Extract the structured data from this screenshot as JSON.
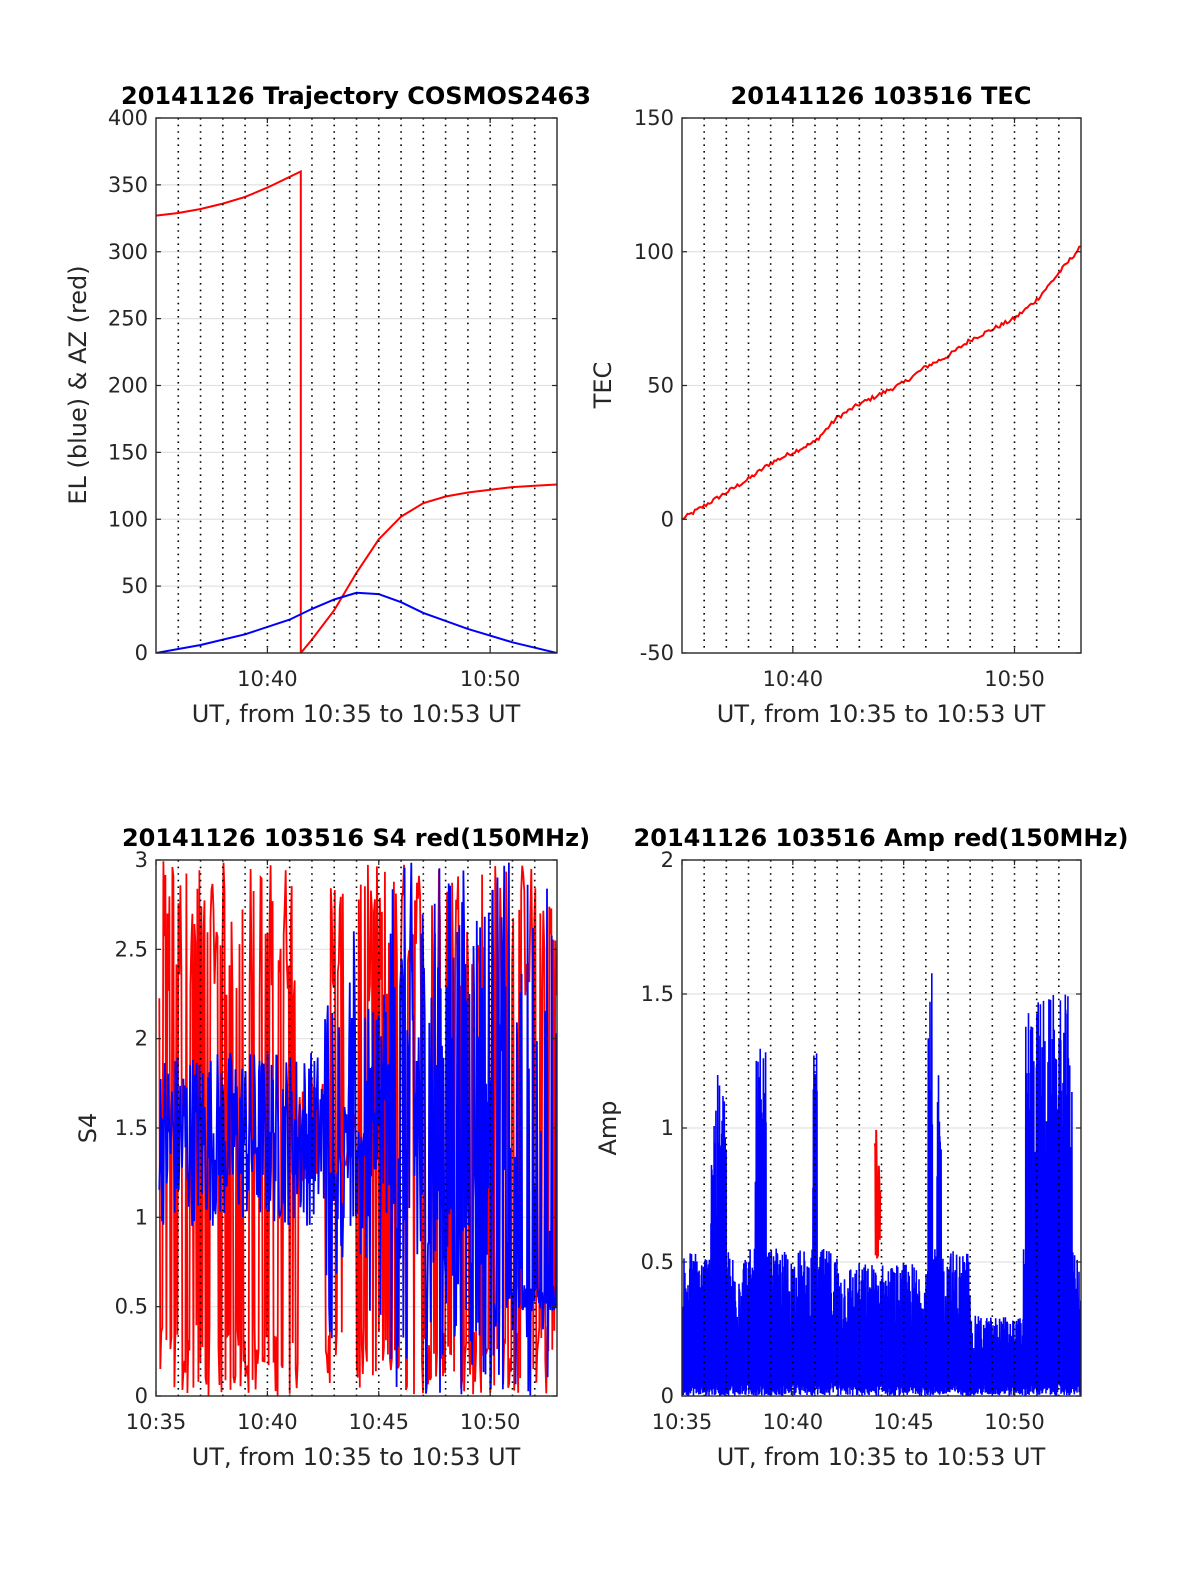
{
  "charts": {
    "traj": {
      "type": "line",
      "title": "20141126 Trajectory COSMOS2463",
      "xlabel": "UT, from 10:35 to 10:53 UT",
      "ylabel": "EL (blue) & AZ (red)",
      "xlim": [
        0,
        18
      ],
      "ylim": [
        0,
        400
      ],
      "yticks": [
        0,
        50,
        100,
        150,
        200,
        250,
        300,
        350,
        400
      ],
      "xticks": [
        {
          "v": 5,
          "label": "10:40"
        },
        {
          "v": 15,
          "label": "10:50"
        }
      ],
      "vgrid": [
        1,
        2,
        3,
        4,
        5,
        6,
        7,
        8,
        9,
        10,
        11,
        12,
        13,
        14,
        15,
        16,
        17
      ],
      "series": [
        {
          "color": "#ff0000",
          "x": [
            0,
            1,
            2,
            3,
            4,
            5,
            6.5,
            6.5,
            7,
            8,
            9,
            10,
            11,
            12,
            13,
            14,
            15,
            16,
            17,
            18
          ],
          "values": [
            327,
            329,
            332,
            336,
            341,
            348,
            360,
            0,
            10,
            32,
            60,
            85,
            102,
            112,
            117,
            120,
            122,
            124,
            125,
            126
          ]
        },
        {
          "color": "#0000ff",
          "x": [
            0,
            2,
            4,
            6,
            7,
            8,
            9,
            10,
            11,
            12,
            14,
            16,
            18
          ],
          "values": [
            0,
            6,
            14,
            25,
            33,
            40,
            45,
            44,
            38,
            30,
            18,
            8,
            0
          ]
        }
      ]
    },
    "tec": {
      "type": "line",
      "title": "20141126 103516 TEC",
      "xlabel": "UT, from 10:35 to 10:53 UT",
      "ylabel": "TEC",
      "xlim": [
        0,
        18
      ],
      "ylim": [
        -50,
        150
      ],
      "yticks": [
        -50,
        0,
        50,
        100,
        150
      ],
      "xticks": [
        {
          "v": 5,
          "label": "10:40"
        },
        {
          "v": 15,
          "label": "10:50"
        }
      ],
      "vgrid": [
        1,
        2,
        3,
        4,
        5,
        6,
        7,
        8,
        9,
        10,
        11,
        12,
        13,
        14,
        15,
        16,
        17
      ],
      "series": [
        {
          "color": "#ff0000",
          "x": [
            0,
            1,
            2,
            3,
            4,
            5,
            6,
            7,
            8,
            9,
            10,
            11,
            12,
            13,
            14,
            15,
            16,
            17,
            18
          ],
          "values": [
            0,
            5,
            10,
            15,
            21,
            25,
            29,
            38,
            43,
            47,
            51,
            57,
            61,
            67,
            71,
            75,
            82,
            92,
            102
          ]
        }
      ]
    },
    "s4": {
      "type": "line",
      "title": "20141126 103516 S4 red(150MHz)",
      "xlabel": "UT, from 10:35 to 10:53 UT",
      "ylabel": "S4",
      "xlim": [
        0,
        18
      ],
      "ylim": [
        0,
        3
      ],
      "yticks": [
        0,
        0.5,
        1,
        1.5,
        2,
        2.5,
        3
      ],
      "xticks": [
        {
          "v": 0,
          "label": "10:35"
        },
        {
          "v": 5,
          "label": "10:40"
        },
        {
          "v": 10,
          "label": "10:45"
        },
        {
          "v": 15,
          "label": "10:50"
        }
      ],
      "vgrid": [
        1,
        2,
        3,
        4,
        5,
        6,
        7,
        8,
        9,
        10,
        11,
        12,
        13,
        14,
        15,
        16,
        17
      ],
      "series": [
        {
          "name": "red",
          "color": "#ff0000"
        },
        {
          "name": "blue",
          "color": "#0000ff"
        }
      ]
    },
    "amp": {
      "type": "line",
      "title": "20141126 103516 Amp red(150MHz)",
      "xlabel": "UT, from 10:35 to 10:53 UT",
      "ylabel": "Amp",
      "xlim": [
        0,
        18
      ],
      "ylim": [
        0,
        2
      ],
      "yticks": [
        0,
        0.5,
        1,
        1.5,
        2
      ],
      "xticks": [
        {
          "v": 0,
          "label": "10:35"
        },
        {
          "v": 5,
          "label": "10:40"
        },
        {
          "v": 10,
          "label": "10:45"
        },
        {
          "v": 15,
          "label": "10:50"
        }
      ],
      "vgrid": [
        1,
        2,
        3,
        4,
        5,
        6,
        7,
        8,
        9,
        10,
        11,
        12,
        13,
        14,
        15,
        16,
        17
      ],
      "series": [
        {
          "name": "red",
          "color": "#ff0000"
        },
        {
          "name": "blue",
          "color": "#0000ff"
        }
      ]
    }
  }
}
